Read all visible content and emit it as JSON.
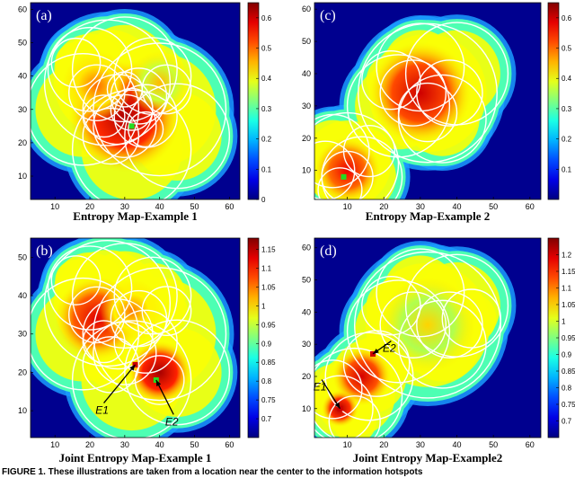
{
  "caption": "FIGURE 1.  These illustrations are taken from a location near the center to the information hotspots",
  "colors": {
    "background": "#00008f",
    "circle_stroke": "#ffffff",
    "ring": "#1a9bff",
    "marker_green": "#22dd22",
    "marker_red": "#cc0000"
  },
  "chart_data": [
    {
      "type": "heatmap",
      "panel_label": "(a)",
      "title": "Entropy Map-Example 1",
      "xticks": [
        10,
        20,
        30,
        40,
        50,
        60
      ],
      "yticks": [
        10,
        20,
        30,
        40,
        50,
        60
      ],
      "xlim": [
        3,
        63
      ],
      "ylim": [
        3,
        62
      ],
      "colorbar": {
        "min": 0,
        "max": 0.65,
        "ticks": [
          "0.6",
          "0.5",
          "0.4",
          "0.3",
          "0.2",
          "0.1",
          "0"
        ]
      },
      "circles": [
        {
          "x": 25,
          "y": 38,
          "r": 18
        },
        {
          "x": 40,
          "y": 30,
          "r": 19
        },
        {
          "x": 32,
          "y": 18,
          "r": 17
        },
        {
          "x": 45,
          "y": 22,
          "r": 15
        },
        {
          "x": 18,
          "y": 30,
          "r": 16
        },
        {
          "x": 30,
          "y": 42,
          "r": 15
        },
        {
          "x": 20,
          "y": 42,
          "r": 12
        },
        {
          "x": 38,
          "y": 40,
          "r": 11
        },
        {
          "x": 28,
          "y": 30,
          "r": 10
        },
        {
          "x": 36,
          "y": 28,
          "r": 9
        },
        {
          "x": 30,
          "y": 25,
          "r": 9
        },
        {
          "x": 22,
          "y": 35,
          "r": 8
        },
        {
          "x": 34,
          "y": 34,
          "r": 8
        },
        {
          "x": 26,
          "y": 22,
          "r": 8
        },
        {
          "x": 32,
          "y": 30,
          "r": 6
        },
        {
          "x": 16,
          "y": 44,
          "r": 7
        },
        {
          "x": 42,
          "y": 36,
          "r": 7
        },
        {
          "x": 24,
          "y": 28,
          "r": 6
        },
        {
          "x": 30,
          "y": 36,
          "r": 5
        },
        {
          "x": 36,
          "y": 24,
          "r": 5
        }
      ],
      "peaks": [
        {
          "x": 30,
          "y": 28,
          "r": 16,
          "v": 0.62
        },
        {
          "x": 22,
          "y": 37,
          "r": 10,
          "v": 0.5
        },
        {
          "x": 40,
          "y": 38,
          "r": 9,
          "v": 0.45
        }
      ],
      "markers": [
        {
          "x": 32,
          "y": 25,
          "color": "#22dd22"
        }
      ],
      "annotations": []
    },
    {
      "type": "heatmap",
      "panel_label": "(b)",
      "title": "Joint Entropy Map-Example 1",
      "xticks": [
        10,
        20,
        30,
        40,
        50,
        60
      ],
      "yticks": [
        10,
        20,
        30,
        40,
        50
      ],
      "xlim": [
        3,
        63
      ],
      "ylim": [
        3,
        55
      ],
      "colorbar": {
        "min": 0.65,
        "max": 1.18,
        "ticks": [
          "1.15",
          "1.1",
          "1.05",
          "1",
          "0.95",
          "0.9",
          "0.85",
          "0.8",
          "0.75",
          "0.7"
        ]
      },
      "circles": [
        {
          "x": 25,
          "y": 38,
          "r": 18
        },
        {
          "x": 40,
          "y": 30,
          "r": 19
        },
        {
          "x": 32,
          "y": 18,
          "r": 17
        },
        {
          "x": 45,
          "y": 20,
          "r": 15
        },
        {
          "x": 18,
          "y": 30,
          "r": 16
        },
        {
          "x": 30,
          "y": 40,
          "r": 15
        },
        {
          "x": 20,
          "y": 42,
          "r": 12
        },
        {
          "x": 38,
          "y": 40,
          "r": 11
        },
        {
          "x": 28,
          "y": 30,
          "r": 10
        },
        {
          "x": 36,
          "y": 28,
          "r": 9
        },
        {
          "x": 30,
          "y": 25,
          "r": 9
        },
        {
          "x": 22,
          "y": 35,
          "r": 8
        },
        {
          "x": 34,
          "y": 34,
          "r": 8
        },
        {
          "x": 26,
          "y": 22,
          "r": 8
        },
        {
          "x": 40,
          "y": 18,
          "r": 7
        },
        {
          "x": 16,
          "y": 44,
          "r": 7
        },
        {
          "x": 42,
          "y": 36,
          "r": 7
        },
        {
          "x": 24,
          "y": 28,
          "r": 6
        }
      ],
      "peaks": [
        {
          "x": 22,
          "y": 34,
          "r": 12,
          "v": 1.13
        },
        {
          "x": 40,
          "y": 20,
          "r": 9,
          "v": 1.16
        },
        {
          "x": 32,
          "y": 36,
          "r": 9,
          "v": 1.05
        }
      ],
      "markers": [
        {
          "x": 33,
          "y": 22,
          "color": "#cc0000"
        },
        {
          "x": 39,
          "y": 18,
          "color": "#22dd22"
        }
      ],
      "annotations": [
        {
          "text": "E1",
          "tx": 24,
          "ty": 12,
          "ax": 33,
          "ay": 22
        },
        {
          "text": "E2",
          "tx": 44,
          "ty": 9,
          "ax": 39,
          "ay": 18
        }
      ]
    },
    {
      "type": "heatmap",
      "panel_label": "(c)",
      "title": "Entropy Map-Example 2",
      "xticks": [
        10,
        20,
        30,
        40,
        50,
        60
      ],
      "yticks": [
        10,
        20,
        30,
        40,
        50,
        60
      ],
      "xlim": [
        1,
        63
      ],
      "ylim": [
        1,
        62
      ],
      "colorbar": {
        "min": 0,
        "max": 0.65,
        "ticks": [
          "0.6",
          "0.5",
          "0.4",
          "0.3",
          "0.2",
          "0.1"
        ]
      },
      "circles": [
        {
          "x": 32,
          "y": 34,
          "r": 19
        },
        {
          "x": 40,
          "y": 40,
          "r": 14
        },
        {
          "x": 24,
          "y": 30,
          "r": 14
        },
        {
          "x": 36,
          "y": 26,
          "r": 12
        },
        {
          "x": 30,
          "y": 42,
          "r": 12
        },
        {
          "x": 28,
          "y": 34,
          "r": 9
        },
        {
          "x": 38,
          "y": 34,
          "r": 9
        },
        {
          "x": 32,
          "y": 28,
          "r": 8
        },
        {
          "x": 22,
          "y": 38,
          "r": 8
        },
        {
          "x": 10,
          "y": 12,
          "r": 14
        },
        {
          "x": 14,
          "y": 8,
          "r": 11
        },
        {
          "x": 6,
          "y": 16,
          "r": 10
        },
        {
          "x": 10,
          "y": 8,
          "r": 7
        },
        {
          "x": 4,
          "y": 10,
          "r": 8
        },
        {
          "x": 16,
          "y": 16,
          "r": 7
        },
        {
          "x": 8,
          "y": 4,
          "r": 6
        }
      ],
      "peaks": [
        {
          "x": 30,
          "y": 34,
          "r": 14,
          "v": 0.6
        },
        {
          "x": 10,
          "y": 10,
          "r": 9,
          "v": 0.58
        }
      ],
      "markers": [
        {
          "x": 9,
          "y": 8,
          "color": "#22dd22"
        }
      ],
      "annotations": []
    },
    {
      "type": "heatmap",
      "panel_label": "(d)",
      "title": "Joint Entropy Map-Example2",
      "xticks": [
        10,
        20,
        30,
        40,
        50,
        60
      ],
      "yticks": [
        10,
        20,
        30,
        40,
        50,
        60
      ],
      "xlim": [
        1,
        63
      ],
      "ylim": [
        1,
        63
      ],
      "colorbar": {
        "min": 0.65,
        "max": 1.25,
        "ticks": [
          "1.2",
          "1.15",
          "1.1",
          "1.05",
          "1",
          "0.95",
          "0.9",
          "0.85",
          "0.8",
          "0.75",
          "0.7"
        ]
      },
      "circles": [
        {
          "x": 32,
          "y": 36,
          "r": 20
        },
        {
          "x": 40,
          "y": 42,
          "r": 14
        },
        {
          "x": 24,
          "y": 34,
          "r": 14
        },
        {
          "x": 36,
          "y": 30,
          "r": 12
        },
        {
          "x": 30,
          "y": 46,
          "r": 12
        },
        {
          "x": 28,
          "y": 36,
          "r": 9
        },
        {
          "x": 38,
          "y": 36,
          "r": 9
        },
        {
          "x": 44,
          "y": 38,
          "r": 8
        },
        {
          "x": 22,
          "y": 42,
          "r": 8
        },
        {
          "x": 12,
          "y": 14,
          "r": 13
        },
        {
          "x": 16,
          "y": 20,
          "r": 12
        },
        {
          "x": 8,
          "y": 10,
          "r": 9
        },
        {
          "x": 18,
          "y": 24,
          "r": 9
        },
        {
          "x": 6,
          "y": 16,
          "r": 8
        },
        {
          "x": 12,
          "y": 6,
          "r": 7
        }
      ],
      "peaks": [
        {
          "x": 32,
          "y": 36,
          "r": 13,
          "v": 1.05
        },
        {
          "x": 14,
          "y": 20,
          "r": 8,
          "v": 1.2
        },
        {
          "x": 8,
          "y": 10,
          "r": 5,
          "v": 1.22
        }
      ],
      "markers": [
        {
          "x": 17,
          "y": 27,
          "color": "#cc0000"
        },
        {
          "x": 8,
          "y": 10,
          "color": "#cc0000"
        }
      ],
      "annotations": [
        {
          "text": "E2",
          "tx": 22,
          "ty": 31,
          "ax": 17,
          "ay": 27
        },
        {
          "text": "E1",
          "tx": 3,
          "ty": 19,
          "ax": 8,
          "ay": 10
        }
      ]
    }
  ]
}
